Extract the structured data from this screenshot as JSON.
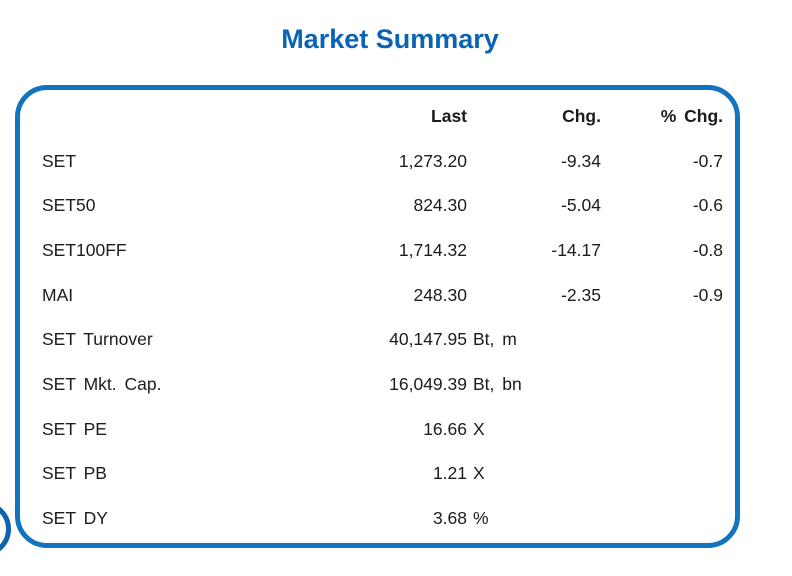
{
  "page": {
    "title": "Market Summary"
  },
  "colors": {
    "title_blue": "#0b63b3",
    "panel_border_blue": "#1473be",
    "corner_arc_blue": "#0f62ad",
    "text": "#1c1c1c",
    "background": "#ffffff"
  },
  "table": {
    "headers": {
      "label": "",
      "last": "Last",
      "chg": "Chg.",
      "pct_chg": "% Chg."
    },
    "rows": [
      {
        "label": "SET",
        "last": "1,273.20",
        "unit": "",
        "chg": "-9.34",
        "pct_chg": "-0.7"
      },
      {
        "label": "SET50",
        "last": "824.30",
        "unit": "",
        "chg": "-5.04",
        "pct_chg": "-0.6"
      },
      {
        "label": "SET100FF",
        "last": "1,714.32",
        "unit": "",
        "chg": "-14.17",
        "pct_chg": "-0.8"
      },
      {
        "label": "MAI",
        "last": "248.30",
        "unit": "",
        "chg": "-2.35",
        "pct_chg": "-0.9"
      },
      {
        "label": "SET Turnover",
        "last": "40,147.95",
        "unit": "Bt, m",
        "chg": "",
        "pct_chg": ""
      },
      {
        "label": "SET Mkt. Cap.",
        "last": "16,049.39",
        "unit": "Bt, bn",
        "chg": "",
        "pct_chg": ""
      },
      {
        "label": "SET PE",
        "last": "16.66",
        "unit": "X",
        "chg": "",
        "pct_chg": ""
      },
      {
        "label": "SET PB",
        "last": "1.21",
        "unit": "X",
        "chg": "",
        "pct_chg": ""
      },
      {
        "label": "SET DY",
        "last": "3.68",
        "unit": "%",
        "chg": "",
        "pct_chg": ""
      }
    ]
  }
}
